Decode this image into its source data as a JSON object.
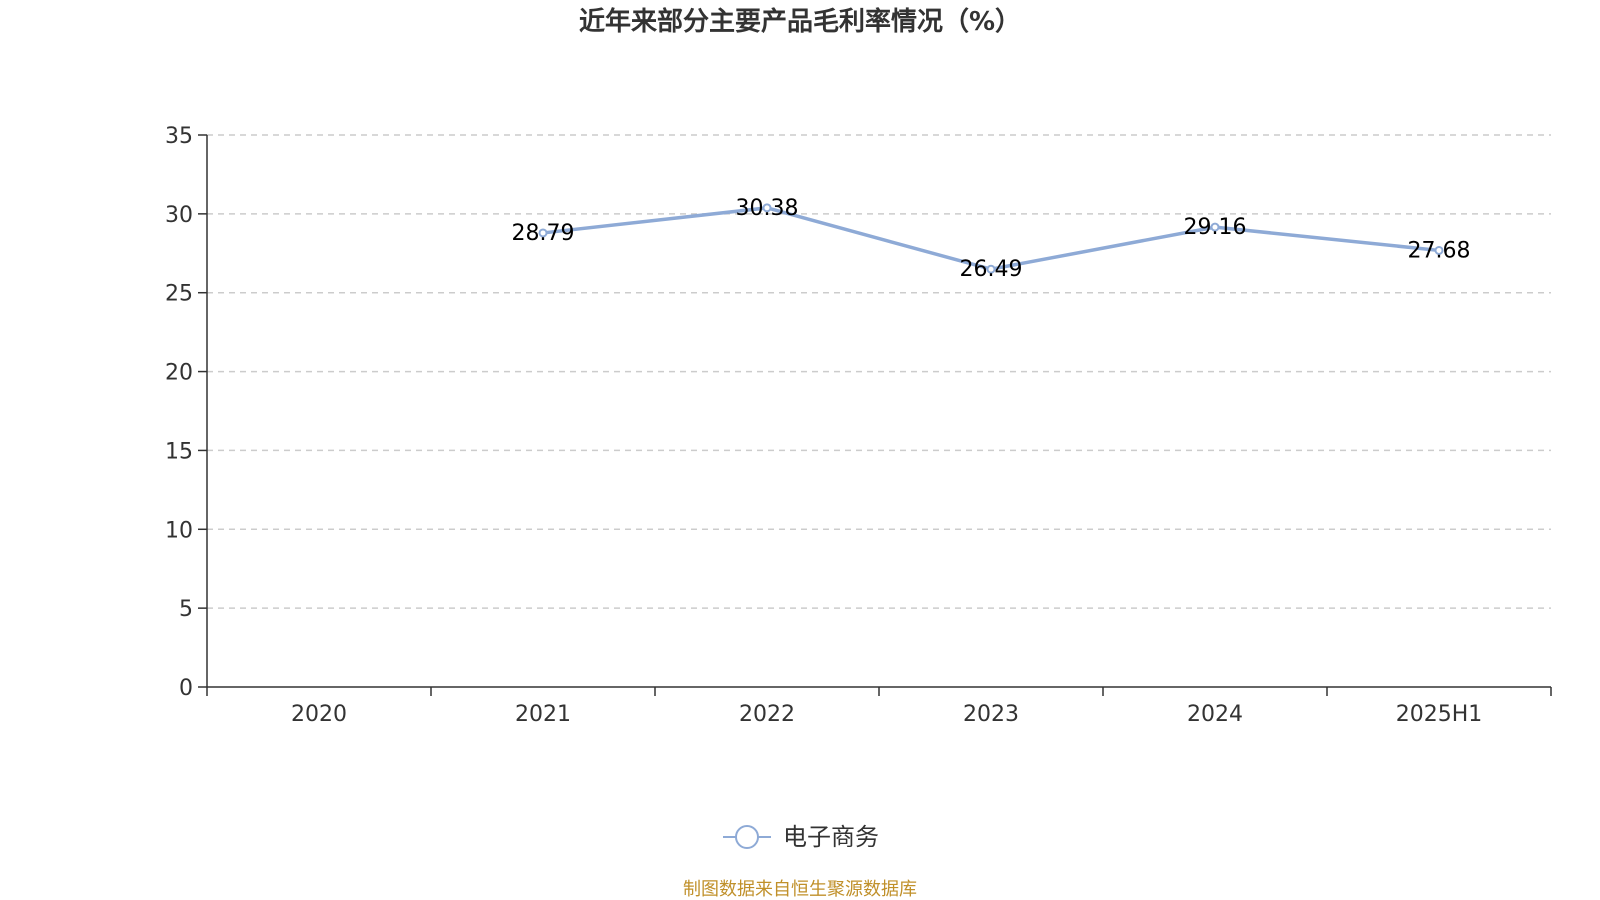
{
  "chart_data": {
    "type": "line",
    "title": "近年来部分主要产品毛利率情况（%）",
    "categories": [
      "2020",
      "2021",
      "2022",
      "2023",
      "2024",
      "2025H1"
    ],
    "series": [
      {
        "name": "电子商务",
        "color": "#8eaad6",
        "values": [
          null,
          28.79,
          30.38,
          26.49,
          29.16,
          27.68
        ],
        "labels": [
          "",
          "28.79",
          "30.38",
          "26.49",
          "29.16",
          "27.68"
        ]
      }
    ],
    "yticks": [
      "0",
      "5",
      "10",
      "15",
      "20",
      "25",
      "30",
      "35"
    ],
    "ylim": [
      0,
      35
    ],
    "grid": true,
    "legend_position": "bottom"
  },
  "source": "制图数据来自恒生聚源数据库"
}
